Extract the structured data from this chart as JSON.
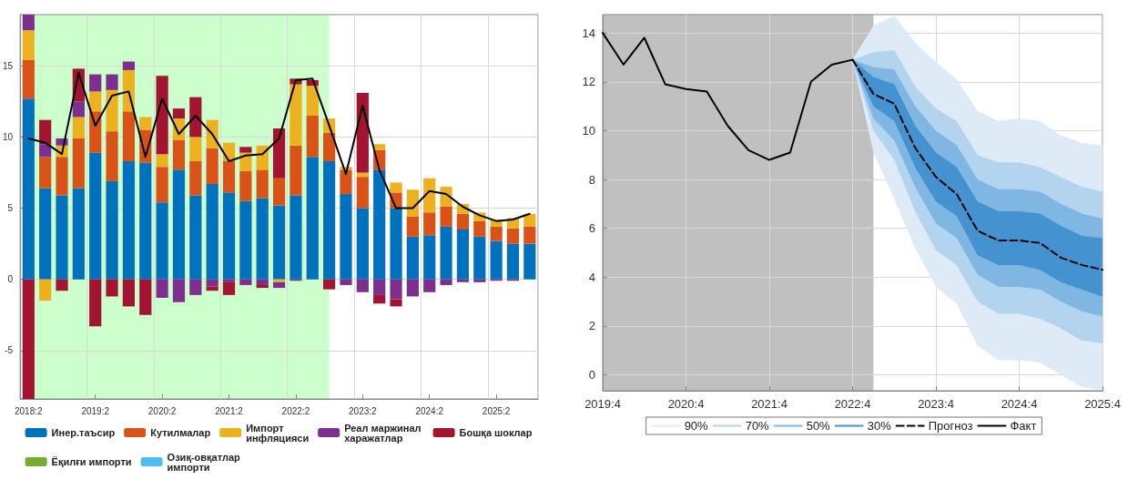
{
  "chart_data": [
    {
      "type": "bar",
      "stacked": true,
      "grid": true,
      "legend": "bottom",
      "marker": "none",
      "categories": [
        "2018:2",
        null,
        null,
        null,
        "2019:2",
        null,
        null,
        null,
        "2020:2",
        null,
        null,
        null,
        "2021:2",
        null,
        null,
        null,
        "2022:2",
        null,
        null,
        null,
        "2023:2",
        null,
        null,
        null,
        "2024:2",
        null,
        null,
        null,
        "2025:2",
        null,
        null
      ],
      "ylim": [
        -8.4,
        18.6
      ],
      "yticks": [
        -5,
        0,
        5,
        10,
        15
      ],
      "series": [
        {
          "name": "Инер.таъсир",
          "color": "#0072bd",
          "values": [
            12.7,
            6.4,
            5.9,
            6.4,
            8.9,
            6.9,
            8.3,
            8.2,
            5.4,
            7.7,
            5.9,
            6.7,
            6.1,
            5.5,
            5.7,
            5.2,
            5.9,
            8.6,
            8.3,
            6.0,
            5.0,
            7.7,
            5.0,
            3.0,
            3.1,
            3.7,
            3.5,
            3.0,
            2.7,
            2.5,
            2.5
          ]
        },
        {
          "name": "Кутилмалар",
          "color": "#d95319",
          "values": [
            2.7,
            2.2,
            2.7,
            3.5,
            2.9,
            3.5,
            3.5,
            2.3,
            2.5,
            2.1,
            2.4,
            2.5,
            2.2,
            2.1,
            2.0,
            1.9,
            3.5,
            2.9,
            2.0,
            1.7,
            2.2,
            1.4,
            1.1,
            1.4,
            1.6,
            1.4,
            1.1,
            1.1,
            1.0,
            1.1,
            1.2
          ]
        },
        {
          "name": "Импорт инфляцияси",
          "color": "#edb120",
          "values": [
            2.1,
            -1.5,
            0.8,
            1.5,
            1.4,
            2.9,
            2.9,
            0.9,
            0.9,
            1.5,
            1.7,
            2.0,
            1.3,
            1.3,
            1.7,
            -0.2,
            4.3,
            2.1,
            1.0,
            0.2,
            0.3,
            0.4,
            0.7,
            1.9,
            2.4,
            1.4,
            0.7,
            0.6,
            0.5,
            0.7,
            0.9
          ]
        },
        {
          "name": "Реал маржинал харажатлар",
          "color": "#7e2f8e",
          "values": [
            1.1,
            0.9,
            0.5,
            1.1,
            1.2,
            1.1,
            0.6,
            null,
            -1.3,
            -1.6,
            -1.1,
            -0.5,
            -0.2,
            -0.4,
            -0.4,
            -0.4,
            -0.1,
            null,
            null,
            -0.4,
            -0.9,
            -1.1,
            -1.4,
            -1.2,
            -0.9,
            -0.4,
            -0.2,
            -0.2,
            -0.1,
            -0.1,
            null
          ]
        },
        {
          "name": "Бошқа шоклар",
          "color": "#a2142f",
          "values": [
            -8.4,
            1.7,
            -0.8,
            2.3,
            -3.3,
            -1.2,
            -1.9,
            -2.5,
            5.5,
            0.7,
            2.8,
            -0.3,
            -0.9,
            0.4,
            -0.2,
            3.5,
            0.4,
            0.4,
            -0.7,
            null,
            5.6,
            -0.6,
            -0.5,
            null,
            null,
            null,
            null,
            null,
            null,
            null,
            null
          ]
        },
        {
          "name": "Ёқилғи импорти",
          "color": "#77ac30",
          "values": [
            null,
            null,
            null,
            null,
            null,
            null,
            null,
            null,
            null,
            null,
            null,
            null,
            null,
            null,
            null,
            null,
            null,
            null,
            null,
            null,
            null,
            null,
            null,
            null,
            null,
            null,
            null,
            null,
            null,
            null,
            null
          ]
        },
        {
          "name": "Озиқ-овқатлар импорти",
          "color": "#4dbeee",
          "values": [
            null,
            null,
            null,
            null,
            null,
            null,
            null,
            null,
            null,
            null,
            null,
            null,
            null,
            null,
            null,
            null,
            null,
            null,
            null,
            null,
            null,
            null,
            null,
            null,
            null,
            null,
            null,
            null,
            null,
            null,
            null
          ]
        },
        {
          "type": "line",
          "color": "#000000",
          "values": [
            9.9,
            9.6,
            8.8,
            14.5,
            10.8,
            12.9,
            13.2,
            8.6,
            12.7,
            10.2,
            11.5,
            10.2,
            8.3,
            8.7,
            8.8,
            9.9,
            14.0,
            14.1,
            10.8,
            7.4,
            12.2,
            7.7,
            5.0,
            5.0,
            6.2,
            6.0,
            5.1,
            4.5,
            4.1,
            4.2,
            4.6
          ]
        }
      ]
    },
    {
      "type": "line",
      "grid": true,
      "legend": "bottom",
      "marker": "none",
      "categories": [
        "2019:4",
        null,
        null,
        null,
        "2020:4",
        null,
        null,
        null,
        "2021:4",
        null,
        null,
        null,
        "2022:4",
        null,
        null,
        null,
        "2023:4",
        null,
        null,
        null,
        "2024:4",
        null,
        null,
        null,
        "2025:4"
      ],
      "ylim": [
        -0.65,
        14.75
      ],
      "yticks": [
        0,
        2,
        4,
        6,
        8,
        10,
        12,
        14
      ],
      "series": [
        {
          "name": "90%",
          "color": "#deebf7",
          "values": [
            null,
            null,
            null,
            null,
            null,
            null,
            null,
            null,
            null,
            null,
            null,
            null,
            null,
            null,
            null,
            null,
            null,
            null,
            null,
            null,
            null,
            null,
            null,
            null,
            null
          ],
          "lower": [
            null,
            null,
            null,
            null,
            null,
            null,
            null,
            null,
            null,
            null,
            null,
            null,
            12.9,
            9.1,
            7.2,
            5.2,
            3.6,
            2.9,
            1.2,
            0.6,
            0.6,
            0.5,
            0.0,
            -0.5,
            -0.6
          ],
          "upper": [
            null,
            null,
            null,
            null,
            null,
            null,
            null,
            null,
            null,
            null,
            null,
            null,
            12.9,
            14.3,
            14.7,
            13.6,
            12.8,
            12.1,
            10.8,
            10.4,
            10.5,
            10.4,
            9.8,
            9.5,
            9.4
          ]
        },
        {
          "name": "70%",
          "color": "#b3d4ef",
          "values": [
            null,
            null,
            null,
            null,
            null,
            null,
            null,
            null,
            null,
            null,
            null,
            null,
            null,
            null,
            null,
            null,
            null,
            null,
            null,
            null,
            null,
            null,
            null,
            null,
            null
          ],
          "lower": [
            null,
            null,
            null,
            null,
            null,
            null,
            null,
            null,
            null,
            null,
            null,
            null,
            12.9,
            10.0,
            8.8,
            6.7,
            5.1,
            4.5,
            3.0,
            2.5,
            2.5,
            2.3,
            1.9,
            1.4,
            1.3
          ],
          "upper": [
            null,
            null,
            null,
            null,
            null,
            null,
            null,
            null,
            null,
            null,
            null,
            null,
            12.9,
            13.2,
            13.3,
            11.8,
            10.9,
            10.4,
            9.0,
            8.7,
            8.7,
            8.5,
            8.1,
            7.7,
            7.5
          ]
        },
        {
          "name": "50%",
          "color": "#7fb6e2",
          "values": [
            null,
            null,
            null,
            null,
            null,
            null,
            null,
            null,
            null,
            null,
            null,
            null,
            null,
            null,
            null,
            null,
            null,
            null,
            null,
            null,
            null,
            null,
            null,
            null,
            null
          ],
          "lower": [
            null,
            null,
            null,
            null,
            null,
            null,
            null,
            null,
            null,
            null,
            null,
            null,
            12.9,
            10.5,
            9.6,
            7.7,
            6.2,
            5.6,
            4.1,
            3.6,
            3.6,
            3.5,
            3.0,
            2.6,
            2.4
          ],
          "upper": [
            null,
            null,
            null,
            null,
            null,
            null,
            null,
            null,
            null,
            null,
            null,
            null,
            12.9,
            12.6,
            12.5,
            11.0,
            10.0,
            9.4,
            8.0,
            7.6,
            7.6,
            7.5,
            7.0,
            6.6,
            6.4
          ]
        },
        {
          "name": "30%",
          "color": "#4592d1",
          "values": [
            null,
            null,
            null,
            null,
            null,
            null,
            null,
            null,
            null,
            null,
            null,
            null,
            null,
            null,
            null,
            null,
            null,
            null,
            null,
            null,
            null,
            null,
            null,
            null,
            null
          ],
          "lower": [
            null,
            null,
            null,
            null,
            null,
            null,
            null,
            null,
            null,
            null,
            null,
            null,
            12.9,
            11.0,
            10.4,
            8.5,
            7.1,
            6.5,
            4.9,
            4.5,
            4.5,
            4.3,
            3.8,
            3.5,
            3.2
          ],
          "upper": [
            null,
            null,
            null,
            null,
            null,
            null,
            null,
            null,
            null,
            null,
            null,
            null,
            12.9,
            12.2,
            11.9,
            10.2,
            9.1,
            8.5,
            7.1,
            6.7,
            6.7,
            6.6,
            6.1,
            5.7,
            5.6
          ]
        },
        {
          "name": "Прогноз",
          "color": "#000000",
          "line_style": "dashed",
          "values": [
            null,
            null,
            null,
            null,
            null,
            null,
            null,
            null,
            null,
            null,
            null,
            null,
            12.9,
            11.5,
            11.1,
            9.3,
            8.1,
            7.4,
            5.9,
            5.5,
            5.5,
            5.4,
            4.8,
            4.5,
            4.3
          ]
        },
        {
          "name": "Факт",
          "color": "#000000",
          "line_style": "solid",
          "values": [
            14.0,
            12.7,
            13.8,
            11.9,
            11.7,
            11.6,
            10.2,
            9.2,
            8.8,
            9.1,
            12.0,
            12.7,
            12.9,
            null,
            null,
            null,
            null,
            null,
            null,
            null,
            null,
            null,
            null,
            null,
            null
          ]
        }
      ]
    }
  ]
}
